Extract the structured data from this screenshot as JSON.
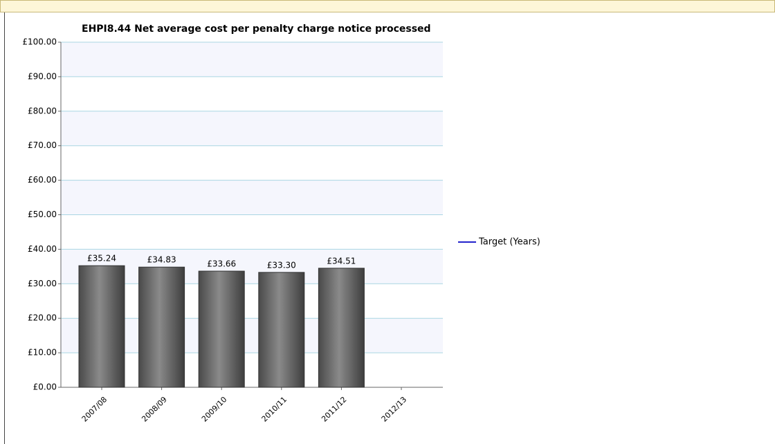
{
  "chart_data": {
    "type": "bar",
    "title": "EHPI8.44 Net average cost per penalty charge notice processed",
    "categories": [
      "2007/08",
      "2008/09",
      "2009/10",
      "2010/11",
      "2011/12",
      "2012/13"
    ],
    "series": [
      {
        "color": "#666666",
        "values": [
          35.24,
          34.83,
          33.66,
          33.3,
          34.51,
          null
        ],
        "value_labels": [
          "£35.24",
          "£34.83",
          "£33.66",
          "£33.30",
          "£34.51",
          null
        ]
      },
      {
        "name": "Target (Years)",
        "color": "#2222cc",
        "values": [
          null,
          null,
          null,
          null,
          null,
          null
        ]
      }
    ],
    "ylim": [
      0,
      100
    ],
    "yticks": [
      {
        "value": 0,
        "label": "£0.00"
      },
      {
        "value": 10,
        "label": "£10.00"
      },
      {
        "value": 20,
        "label": "£20.00"
      },
      {
        "value": 30,
        "label": "£30.00"
      },
      {
        "value": 40,
        "label": "£40.00"
      },
      {
        "value": 50,
        "label": "£50.00"
      },
      {
        "value": 60,
        "label": "£60.00"
      },
      {
        "value": 70,
        "label": "£70.00"
      },
      {
        "value": 80,
        "label": "£80.00"
      },
      {
        "value": 90,
        "label": "£90.00"
      },
      {
        "value": 100,
        "label": "£100.00"
      }
    ],
    "grid": true,
    "legend": "right"
  }
}
